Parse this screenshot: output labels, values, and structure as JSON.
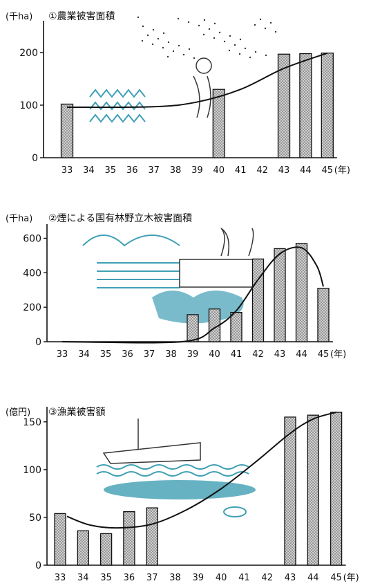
{
  "colors": {
    "ink": "#111111",
    "bar_fill": "#bdbdbd",
    "illustration": "#1f8fa8"
  },
  "chart_data": [
    {
      "type": "bar",
      "title": "①農業被害面積",
      "unit": "(千ha)",
      "categories": [
        "33",
        "34",
        "35",
        "36",
        "37",
        "38",
        "39",
        "40",
        "41",
        "42",
        "43",
        "44",
        "45"
      ],
      "values": [
        102,
        null,
        null,
        null,
        null,
        null,
        null,
        130,
        null,
        null,
        197,
        198,
        199
      ],
      "ylim": [
        0,
        250
      ],
      "yticks": [
        0,
        100,
        200
      ],
      "xunit": "(年)",
      "trend": [
        [
          33,
          96
        ],
        [
          37,
          97
        ],
        [
          39,
          106
        ],
        [
          41,
          130
        ],
        [
          43,
          170
        ],
        [
          45,
          199
        ]
      ],
      "illustration": "farmer-icon"
    },
    {
      "type": "bar",
      "title": "②煙による国有林野立木被害面積",
      "unit": "(千ha)",
      "categories": [
        "33",
        "34",
        "35",
        "36",
        "37",
        "38",
        "39",
        "40",
        "41",
        "42",
        "43",
        "44",
        "45"
      ],
      "values": [
        null,
        null,
        null,
        null,
        null,
        null,
        157,
        190,
        170,
        480,
        540,
        570,
        310
      ],
      "ylim": [
        0,
        650
      ],
      "yticks": [
        0,
        200,
        400,
        600
      ],
      "xunit": "(年)",
      "trend": [
        [
          33,
          0
        ],
        [
          38.5,
          0
        ],
        [
          40,
          80
        ],
        [
          41,
          180
        ],
        [
          42,
          360
        ],
        [
          43,
          510
        ],
        [
          44,
          545
        ],
        [
          44.7,
          440
        ],
        [
          45,
          320
        ]
      ],
      "illustration": "smoke-forest-icon"
    },
    {
      "type": "bar",
      "title": "③漁業被害額",
      "unit": "(億円)",
      "categories": [
        "33",
        "34",
        "35",
        "36",
        "37",
        "38",
        "39",
        "40",
        "41",
        "42",
        "43",
        "44",
        "45"
      ],
      "values": [
        54,
        36,
        33,
        56,
        60,
        null,
        null,
        null,
        null,
        null,
        155,
        157,
        160
      ],
      "ylim": [
        0,
        160
      ],
      "yticks": [
        0,
        50,
        100,
        150
      ],
      "xunit": "(年)",
      "trend": [
        [
          33.3,
          51
        ],
        [
          34.3,
          42
        ],
        [
          35.5,
          39
        ],
        [
          37,
          43
        ],
        [
          38.5,
          58
        ],
        [
          40,
          80
        ],
        [
          41.5,
          108
        ],
        [
          43,
          138
        ],
        [
          44,
          153
        ],
        [
          45,
          160
        ]
      ],
      "illustration": "fishing-boat-icon"
    }
  ]
}
